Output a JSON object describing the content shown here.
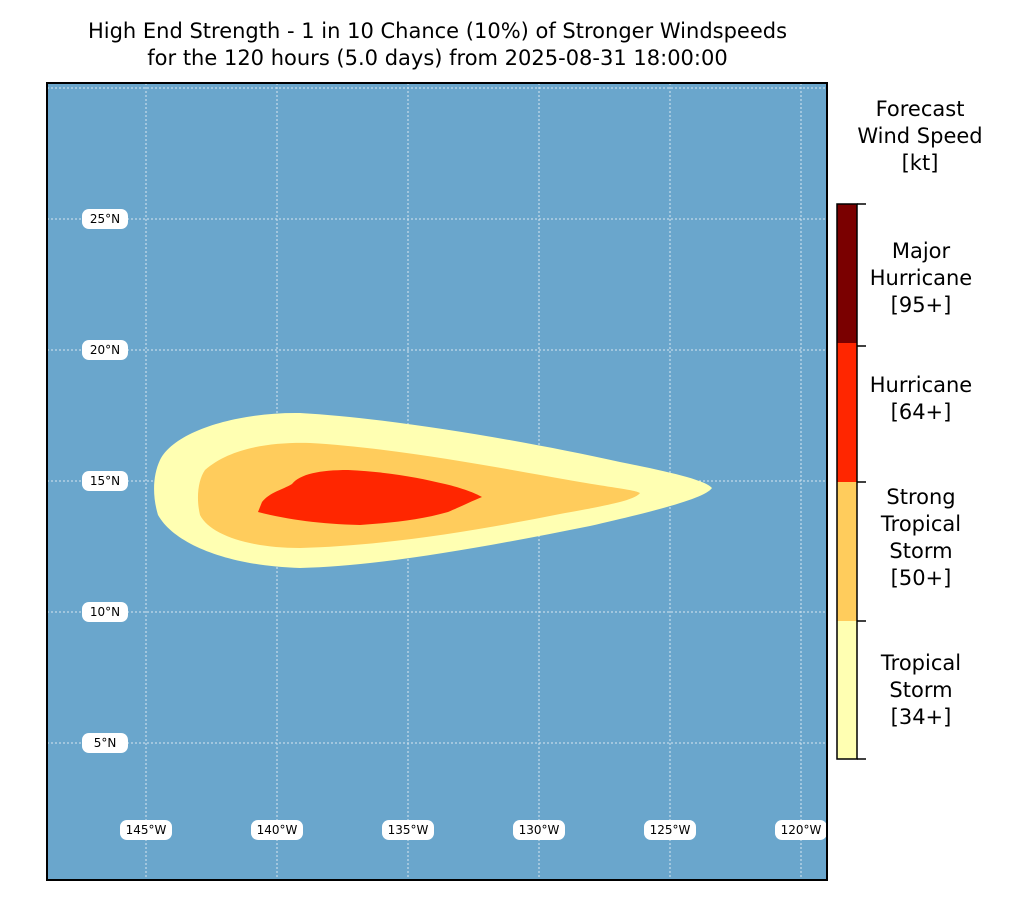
{
  "title": {
    "line1": "High End Strength - 1 in 10 Chance (10%) of Stronger Windspeeds",
    "line2": "for the 120 hours (5.0 days) from 2025-08-31 18:00:00"
  },
  "map": {
    "ocean_color": "#6aa6cc",
    "lat_labels": [
      "25°N",
      "20°N",
      "15°N",
      "10°N",
      "5°N"
    ],
    "lon_labels": [
      "145°W",
      "140°W",
      "135°W",
      "130°W",
      "125°W",
      "120°W"
    ],
    "lat_values": [
      25,
      20,
      15,
      10,
      5
    ],
    "lon_values": [
      -145,
      -140,
      -135,
      -130,
      -125,
      -120
    ]
  },
  "legend": {
    "title": [
      "Forecast",
      "Wind Speed",
      "[kt]"
    ],
    "categories": [
      {
        "lines": [
          "Major",
          "Hurricane",
          "[95+]"
        ],
        "color": "#7a0000"
      },
      {
        "lines": [
          "Hurricane",
          "[64+]"
        ],
        "color": "#ff2600"
      },
      {
        "lines": [
          "Strong",
          "Tropical",
          "Storm",
          "[50+]"
        ],
        "color": "#ffcc5c"
      },
      {
        "lines": [
          "Tropical",
          "Storm",
          "[34+]"
        ],
        "color": "#ffffb2"
      }
    ]
  }
}
